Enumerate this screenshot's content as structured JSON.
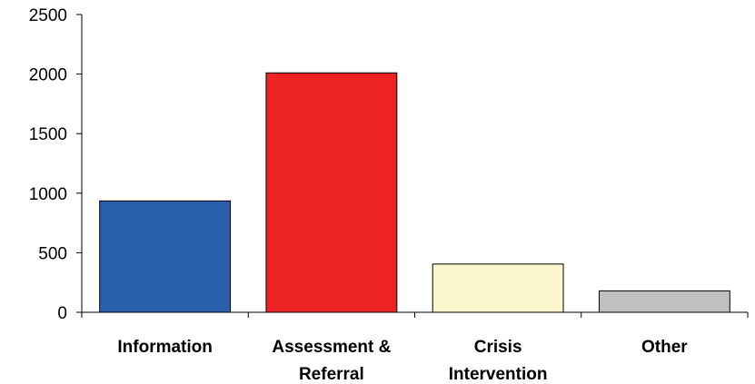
{
  "chart_data": {
    "type": "bar",
    "categories": [
      "Information",
      "Assessment & Referral",
      "Crisis Intervention",
      "Other"
    ],
    "category_label_lines": [
      [
        "Information"
      ],
      [
        "Assessment &",
        "Referral"
      ],
      [
        "Crisis",
        "Intervention"
      ],
      [
        "Other"
      ]
    ],
    "values": [
      935,
      2010,
      405,
      180
    ],
    "colors": [
      "#2a5fae",
      "#ee2424",
      "#fbf6cc",
      "#c0c0c0"
    ],
    "yticks": [
      "0",
      "500",
      "1000",
      "1500",
      "2000",
      "2500"
    ],
    "ylim": [
      0,
      2500
    ],
    "grid": false,
    "legend": "none"
  }
}
